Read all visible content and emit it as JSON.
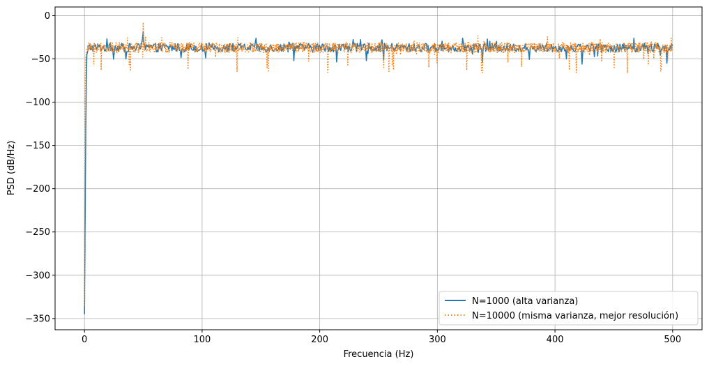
{
  "chart_data": {
    "type": "line",
    "title": "",
    "xlabel": "Frecuencia (Hz)",
    "ylabel": "PSD (dB/Hz)",
    "xlim": [
      -25,
      525
    ],
    "ylim": [
      -363,
      10
    ],
    "xticks": [
      0,
      100,
      200,
      300,
      400,
      500
    ],
    "yticks": [
      0,
      -50,
      -100,
      -150,
      -200,
      -250,
      -300,
      -350
    ],
    "xtick_labels": [
      "0",
      "100",
      "200",
      "300",
      "400",
      "500"
    ],
    "ytick_labels": [
      "0",
      "−50",
      "−100",
      "−150",
      "−200",
      "−250",
      "−300",
      "−350"
    ],
    "grid": true,
    "legend_position": "lower-right",
    "series": [
      {
        "name": "N=1000 (alta varianza)",
        "color": "#1f77b4",
        "style": "solid",
        "x": [
          0,
          0.5,
          1,
          1.5,
          2,
          3,
          5,
          8,
          10,
          20,
          40,
          49,
          50,
          51,
          60,
          100,
          150,
          200,
          250,
          300,
          350,
          400,
          450,
          467,
          480,
          495,
          500
        ],
        "y": [
          -345,
          -250,
          -150,
          -80,
          -45,
          -40,
          -36,
          -38,
          -37,
          -36,
          -37,
          -36,
          -18,
          -36,
          -37,
          -36,
          -37,
          -38,
          -36,
          -37,
          -36,
          -37,
          -36,
          -26,
          -37,
          -55,
          -33
        ],
        "baseline": -37,
        "spread": 5,
        "min_dip": -57,
        "max_peak": -26
      },
      {
        "name": "N=10000 (misma varianza, mejor resolución)",
        "color": "#ff7f0e",
        "style": "dotted",
        "x": [
          0,
          0.2,
          0.5,
          1,
          2,
          5,
          10,
          20,
          40,
          49,
          50,
          51,
          60,
          88,
          100,
          150,
          200,
          250,
          300,
          325,
          350,
          400,
          450,
          490,
          500
        ],
        "y": [
          -335,
          -200,
          -100,
          -50,
          -38,
          -36,
          -37,
          -36,
          -37,
          -36,
          -8,
          -36,
          -37,
          -62,
          -36,
          -37,
          -36,
          -37,
          -36,
          -63,
          -37,
          -36,
          -37,
          -64,
          -35
        ],
        "baseline": -37,
        "spread": 6,
        "min_dip": -67,
        "max_peak": -23
      }
    ]
  }
}
